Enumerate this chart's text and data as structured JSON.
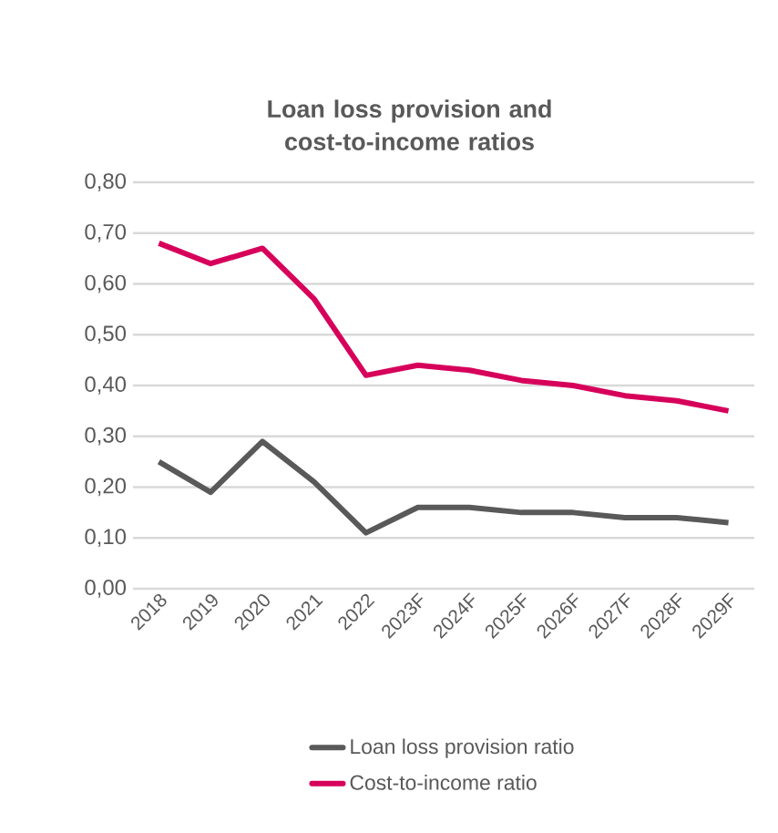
{
  "chart_data": {
    "type": "line",
    "title": "Loan loss provision and cost-to-income ratios",
    "categories": [
      "2018",
      "2019",
      "2020",
      "2021",
      "2022",
      "2023F",
      "2024F",
      "2025F",
      "2026F",
      "2027F",
      "2028F",
      "2029F"
    ],
    "series": [
      {
        "name": "Loan loss provision ratio",
        "color": "#595959",
        "values": [
          0.25,
          0.19,
          0.29,
          0.21,
          0.11,
          0.16,
          0.16,
          0.15,
          0.15,
          0.14,
          0.14,
          0.13
        ]
      },
      {
        "name": "Cost-to-income ratio",
        "color": "#d6005b",
        "values": [
          0.68,
          0.64,
          0.67,
          0.57,
          0.42,
          0.44,
          0.43,
          0.41,
          0.4,
          0.38,
          0.37,
          0.35
        ]
      }
    ],
    "ylim": [
      0,
      0.8
    ],
    "yticks": [
      {
        "value": 0,
        "label": "0,00"
      },
      {
        "value": 0.1,
        "label": "0,10"
      },
      {
        "value": 0.2,
        "label": "0,20"
      },
      {
        "value": 0.3,
        "label": "0,30"
      },
      {
        "value": 0.4,
        "label": "0,40"
      },
      {
        "value": 0.5,
        "label": "0,50"
      },
      {
        "value": 0.6,
        "label": "0,60"
      },
      {
        "value": 0.7,
        "label": "0,70"
      },
      {
        "value": 0.8,
        "label": "0,80"
      }
    ],
    "grid": "y",
    "legend": "bottom",
    "marker": "none",
    "line_style": "solid"
  }
}
